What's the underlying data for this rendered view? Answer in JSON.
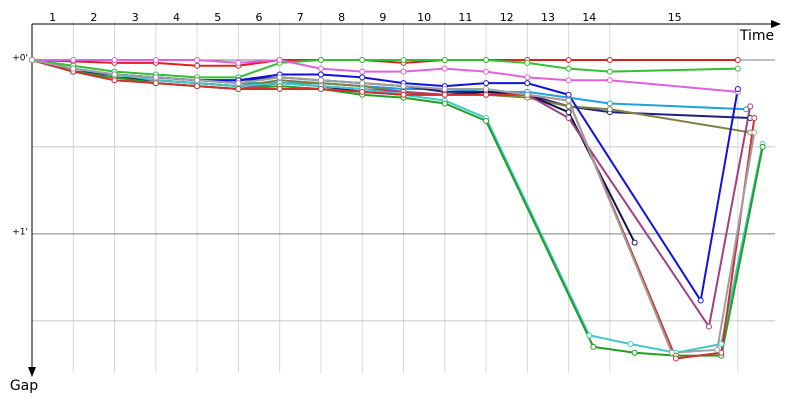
{
  "chart_data": {
    "type": "line",
    "x_label": "Time",
    "y_label": "Gap",
    "xlim": [
      0,
      18
    ],
    "ylim": [
      -10,
      108
    ],
    "xticks": [
      {
        "value": 0.5,
        "label": "1"
      },
      {
        "value": 1.5,
        "label": "2"
      },
      {
        "value": 2.5,
        "label": "3"
      },
      {
        "value": 3.5,
        "label": "4"
      },
      {
        "value": 4.5,
        "label": "5"
      },
      {
        "value": 5.5,
        "label": "6"
      },
      {
        "value": 6.5,
        "label": "7"
      },
      {
        "value": 7.5,
        "label": "8"
      },
      {
        "value": 8.5,
        "label": "9"
      },
      {
        "value": 9.5,
        "label": "10"
      },
      {
        "value": 10.5,
        "label": "11"
      },
      {
        "value": 11.5,
        "label": "12"
      },
      {
        "value": 12.5,
        "label": "13"
      },
      {
        "value": 13.5,
        "label": "14"
      },
      {
        "value": 15.57,
        "label": "15"
      }
    ],
    "lap_boundaries": [
      1,
      2,
      3,
      4,
      5,
      6,
      7,
      8,
      9,
      10,
      11,
      12,
      13,
      14,
      17.1
    ],
    "yticks": [
      {
        "value": 0,
        "label": "+0'"
      },
      {
        "value": 60,
        "label": "+1'"
      }
    ],
    "minor_grid": [
      30,
      90
    ],
    "series": [
      {
        "color": "#e02020",
        "x": [
          0,
          1,
          2,
          3,
          4,
          5,
          6,
          7,
          8,
          9,
          10,
          11,
          12,
          13,
          14,
          17.1
        ],
        "values": [
          0,
          0.5,
          1,
          1,
          2,
          2,
          0,
          0,
          0,
          1,
          0,
          0,
          0,
          0,
          0,
          0
        ]
      },
      {
        "color": "#30c030",
        "x": [
          0,
          1,
          2,
          3,
          4,
          5,
          6,
          7,
          8,
          9,
          10,
          11,
          12,
          13,
          14,
          17.1
        ],
        "values": [
          0,
          2,
          4,
          5,
          6,
          6,
          1,
          0,
          0,
          0,
          0,
          0,
          1,
          3,
          4,
          3
        ]
      },
      {
        "color": "#e060e0",
        "x": [
          0,
          1,
          2,
          3,
          4,
          5,
          6,
          7,
          8,
          9,
          10,
          11,
          12,
          13,
          14,
          17.1
        ],
        "values": [
          0,
          0,
          0,
          0,
          0,
          1,
          0,
          3,
          4,
          4,
          3,
          4,
          6,
          7,
          7,
          11
        ]
      },
      {
        "color": "#20a0e0",
        "x": [
          0,
          1,
          2,
          3,
          4,
          5,
          6,
          7,
          8,
          9,
          10,
          11,
          12,
          13,
          14,
          17.3
        ],
        "values": [
          0,
          3,
          5,
          6,
          7,
          8,
          8,
          8,
          9,
          10,
          10,
          11,
          11,
          13,
          15,
          17
        ]
      },
      {
        "color": "#202080",
        "x": [
          0,
          1,
          2,
          3,
          4,
          5,
          6,
          7,
          8,
          9,
          10,
          11,
          12,
          13,
          14,
          17.4
        ],
        "values": [
          0,
          4,
          5,
          6,
          7,
          7,
          6,
          7,
          8,
          9,
          11,
          11,
          12,
          16,
          18,
          20
        ]
      },
      {
        "color": "#808040",
        "x": [
          0,
          1,
          2,
          3,
          4,
          5,
          6,
          7,
          8,
          9,
          10,
          11,
          12,
          13,
          14,
          17.4
        ],
        "values": [
          0,
          3,
          5,
          7,
          8,
          9,
          7,
          8,
          9,
          11,
          12,
          12,
          13,
          16,
          17,
          25
        ]
      },
      {
        "color": "#1010e0",
        "x": [
          0,
          1,
          2,
          3,
          4,
          5,
          6,
          7,
          8,
          9,
          10,
          11,
          12,
          13,
          16.2,
          17.1
        ],
        "values": [
          0,
          3,
          5,
          6,
          7,
          7,
          5,
          5,
          6,
          8,
          9,
          8,
          8,
          12,
          83,
          10
        ]
      },
      {
        "color": "#101050",
        "x": [
          0,
          1,
          2,
          3,
          4,
          5,
          6,
          7,
          8,
          9,
          10,
          11,
          12,
          13,
          14.6
        ],
        "values": [
          0,
          4,
          6,
          7,
          8,
          9,
          8,
          9,
          11,
          12,
          12,
          11,
          12,
          18,
          63
        ]
      },
      {
        "color": "#a04080",
        "x": [
          0,
          1,
          2,
          3,
          4,
          5,
          6,
          7,
          8,
          9,
          10,
          11,
          12,
          13,
          16.4,
          17.4
        ],
        "values": [
          0,
          4,
          6,
          8,
          9,
          10,
          8,
          9,
          10,
          11,
          12,
          12,
          12,
          20,
          92,
          16
        ]
      },
      {
        "color": "#40c8c8",
        "x": [
          0,
          1,
          2,
          3,
          4,
          5,
          6,
          7,
          8,
          9,
          10,
          11,
          13.5,
          14.5,
          15.6,
          16.7,
          17.7
        ],
        "values": [
          0,
          3,
          5,
          7,
          8,
          9,
          8,
          9,
          10,
          12,
          14,
          20,
          95,
          98,
          101,
          98,
          29
        ]
      },
      {
        "color": "#20a020",
        "x": [
          0,
          1,
          2,
          3,
          4,
          5,
          6,
          7,
          8,
          9,
          10,
          11,
          13.6,
          14.6,
          15.6,
          16.7,
          17.7
        ],
        "values": [
          0,
          4,
          6,
          8,
          9,
          10,
          9,
          10,
          12,
          13,
          15,
          21,
          99,
          101,
          102,
          102,
          30
        ]
      },
      {
        "color": "#d03030",
        "x": [
          0,
          1,
          2,
          3,
          4,
          5,
          6,
          7,
          8,
          9,
          10,
          11,
          12,
          13,
          15.6,
          16.7,
          17.5
        ],
        "values": [
          0,
          4,
          7,
          8,
          9,
          10,
          10,
          10,
          11,
          12,
          12,
          12,
          12,
          14,
          103,
          101,
          20
        ]
      },
      {
        "color": "#a0a0a0",
        "x": [
          0,
          1,
          2,
          3,
          4,
          5,
          6,
          7,
          8,
          9,
          10,
          11,
          12,
          13,
          15.5,
          16.6,
          17.5
        ],
        "values": [
          0,
          3,
          5,
          6,
          7,
          8,
          6,
          7,
          8,
          9,
          10,
          10,
          12,
          14,
          101,
          100,
          25
        ]
      }
    ]
  }
}
